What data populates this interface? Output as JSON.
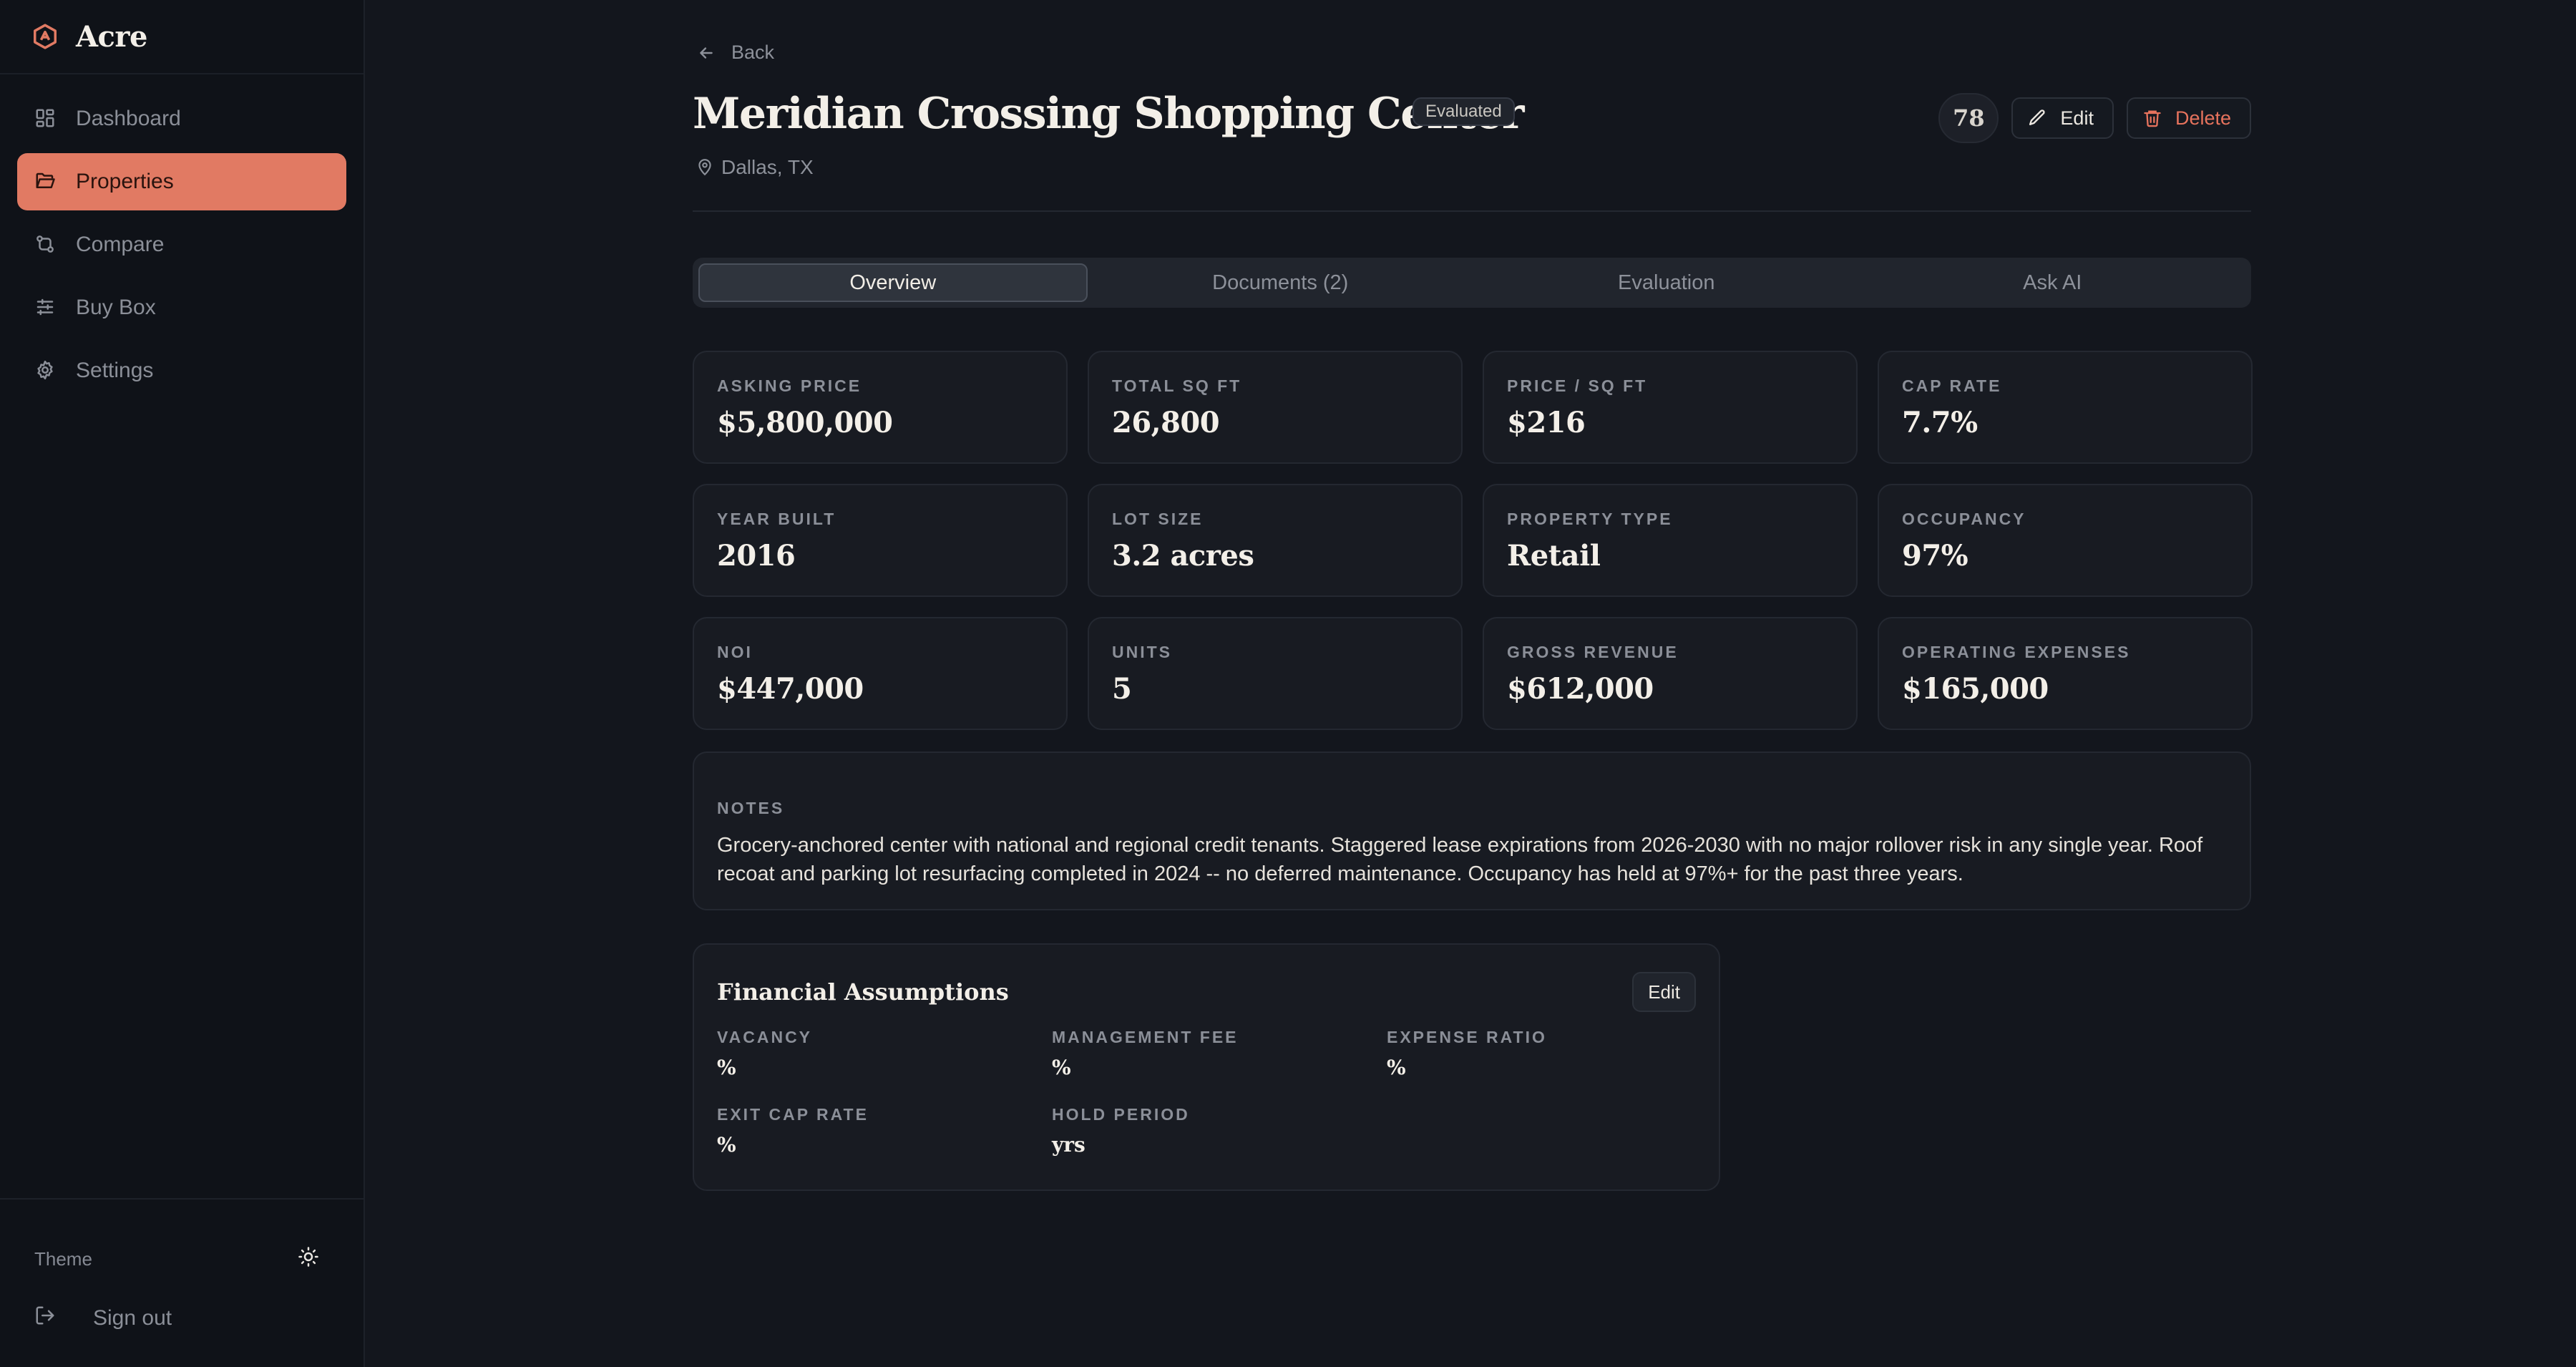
{
  "app": {
    "name": "Acre",
    "accent": "#e17a63",
    "background": "#13161d"
  },
  "sidebar": {
    "items": [
      {
        "label": "Dashboard",
        "icon": "grid-icon",
        "active": false
      },
      {
        "label": "Properties",
        "icon": "folder-icon",
        "active": true
      },
      {
        "label": "Compare",
        "icon": "compare-icon",
        "active": false
      },
      {
        "label": "Buy Box",
        "icon": "sliders-icon",
        "active": false
      },
      {
        "label": "Settings",
        "icon": "gear-icon",
        "active": false
      }
    ],
    "theme_label": "Theme",
    "theme_icon": "sun-icon",
    "signout_label": "Sign out"
  },
  "header": {
    "back_label": "Back",
    "title": "Meridian Crossing Shopping Center",
    "status_badge": "Evaluated",
    "location": "Dallas, TX",
    "score": "78",
    "edit_label": "Edit",
    "delete_label": "Delete"
  },
  "tabs": [
    {
      "label": "Overview",
      "active": true
    },
    {
      "label": "Documents (2)",
      "active": false
    },
    {
      "label": "Evaluation",
      "active": false
    },
    {
      "label": "Ask AI",
      "active": false
    }
  ],
  "metrics": [
    {
      "label": "Asking Price",
      "value": "$5,800,000"
    },
    {
      "label": "Total Sq Ft",
      "value": "26,800"
    },
    {
      "label": "Price / Sq Ft",
      "value": "$216"
    },
    {
      "label": "Cap Rate",
      "value": "7.7%"
    },
    {
      "label": "Year Built",
      "value": "2016"
    },
    {
      "label": "Lot Size",
      "value": "3.2 acres"
    },
    {
      "label": "Property Type",
      "value": "Retail"
    },
    {
      "label": "Occupancy",
      "value": "97%"
    },
    {
      "label": "NOI",
      "value": "$447,000"
    },
    {
      "label": "Units",
      "value": "5"
    },
    {
      "label": "Gross Revenue",
      "value": "$612,000"
    },
    {
      "label": "Operating Expenses",
      "value": "$165,000"
    }
  ],
  "notes": {
    "label": "NOTES",
    "text": "Grocery-anchored center with national and regional credit tenants. Staggered lease expirations from 2026-2030 with no major rollover risk in any single year. Roof recoat and parking lot resurfacing completed in 2024 -- no deferred maintenance. Occupancy has held at 97%+ for the past three years."
  },
  "financial": {
    "title": "Financial Assumptions",
    "edit_label": "Edit",
    "fields": [
      {
        "label": "VACANCY",
        "value": "%"
      },
      {
        "label": "MANAGEMENT FEE",
        "value": "%"
      },
      {
        "label": "EXPENSE RATIO",
        "value": "%"
      },
      {
        "label": "EXIT CAP RATE",
        "value": "%"
      },
      {
        "label": "HOLD PERIOD",
        "value": "yrs"
      }
    ]
  }
}
